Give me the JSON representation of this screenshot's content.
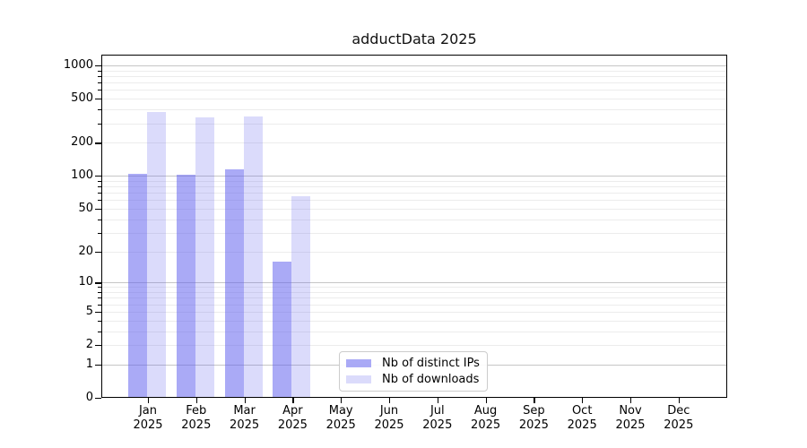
{
  "chart_data": {
    "type": "bar",
    "title": "adductData 2025",
    "x_categories": [
      "Jan",
      "Feb",
      "Mar",
      "Apr",
      "May",
      "Jun",
      "Jul",
      "Aug",
      "Sep",
      "Oct",
      "Nov",
      "Dec"
    ],
    "x_year": "2025",
    "y_ticks": [
      0,
      1,
      2,
      5,
      10,
      20,
      50,
      100,
      200,
      500,
      1000
    ],
    "y_scale": "log1p",
    "ylim": [
      0,
      1250
    ],
    "grid": {
      "orientation": "horizontal",
      "major_lines": [
        1,
        10,
        100,
        1000
      ],
      "minor_lines": [
        2,
        3,
        4,
        5,
        6,
        7,
        8,
        9,
        20,
        30,
        40,
        50,
        60,
        70,
        80,
        90,
        200,
        300,
        400,
        500,
        600,
        700,
        800,
        900
      ],
      "major_color": "#c6c6c6",
      "minor_color": "#ececec"
    },
    "series": [
      {
        "name": "Nb of distinct IPs",
        "values": [
          105,
          102,
          114,
          16,
          null,
          null,
          null,
          null,
          null,
          null,
          null,
          null
        ],
        "base_color": "#5c5ced",
        "alpha": 0.52
      },
      {
        "name": "Nb of downloads",
        "values": [
          376,
          338,
          347,
          65,
          null,
          null,
          null,
          null,
          null,
          null,
          null,
          null
        ],
        "base_color": "#5c5ced",
        "alpha": 0.22
      }
    ],
    "legend": {
      "position": "bottom-center-left"
    }
  }
}
